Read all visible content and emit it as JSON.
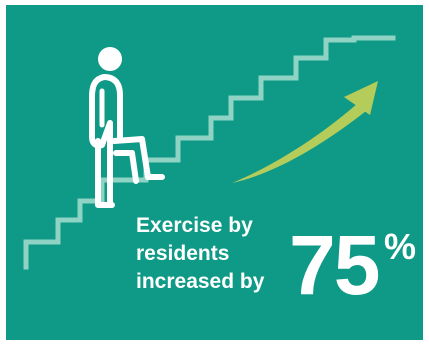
{
  "colors": {
    "background": "#0e9a86",
    "stairs": "#8fd3c4",
    "arrow": "#b4cc5a",
    "figure": "#ffffff",
    "text": "#ffffff"
  },
  "icons": {
    "figure": "person-climbing-icon",
    "stairs": "stairs-icon",
    "arrow": "rising-arrow-icon"
  },
  "caption": {
    "line1": "Exercise by",
    "line2": "residents",
    "line3": "increased by"
  },
  "stat": {
    "value": "75",
    "unit": "%"
  }
}
